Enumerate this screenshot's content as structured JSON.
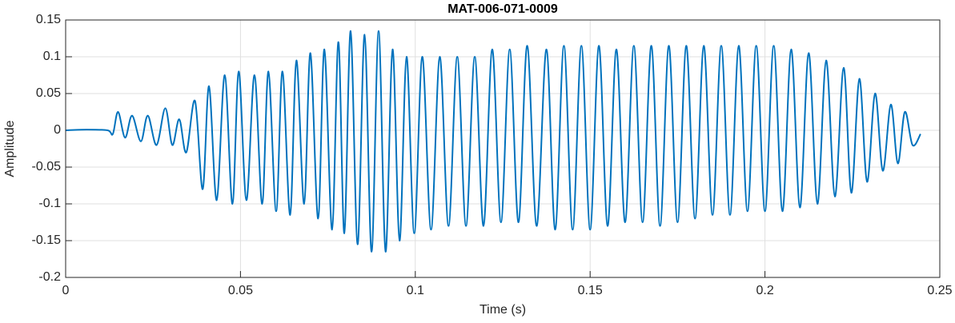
{
  "chart_data": {
    "type": "line",
    "title": "MAT-006-071-0009",
    "xlabel": "Time (s)",
    "ylabel": "Amplitude",
    "xlim": [
      0,
      0.25
    ],
    "xticks": [
      0,
      0.05,
      0.1,
      0.15,
      0.2,
      0.25
    ],
    "ylim": [
      -0.2,
      0.15
    ],
    "yticks": [
      -0.2,
      -0.15,
      -0.1,
      -0.05,
      0,
      0.05,
      0.1,
      0.15
    ],
    "grid": true,
    "x": [
      0,
      0.006,
      0.012,
      0.0135,
      0.015,
      0.017,
      0.019,
      0.0215,
      0.0235,
      0.026,
      0.0285,
      0.0305,
      0.0325,
      0.0345,
      0.037,
      0.0392,
      0.041,
      0.0432,
      0.0455,
      0.0477,
      0.0495,
      0.0517,
      0.054,
      0.0562,
      0.058,
      0.0602,
      0.062,
      0.0642,
      0.066,
      0.0682,
      0.07,
      0.0722,
      0.074,
      0.0762,
      0.078,
      0.0797,
      0.0815,
      0.0835,
      0.0855,
      0.0875,
      0.0895,
      0.0915,
      0.0935,
      0.0955,
      0.0975,
      0.0997,
      0.102,
      0.1045,
      0.107,
      0.1095,
      0.112,
      0.1145,
      0.117,
      0.1195,
      0.122,
      0.1245,
      0.127,
      0.1295,
      0.132,
      0.1347,
      0.1375,
      0.14,
      0.1425,
      0.145,
      0.1475,
      0.15,
      0.1525,
      0.155,
      0.1575,
      0.16,
      0.1625,
      0.165,
      0.1675,
      0.17,
      0.1725,
      0.175,
      0.1775,
      0.18,
      0.1825,
      0.185,
      0.1875,
      0.19,
      0.1925,
      0.195,
      0.1975,
      0.2,
      0.2025,
      0.205,
      0.2075,
      0.21,
      0.2125,
      0.215,
      0.2175,
      0.22,
      0.2225,
      0.2247,
      0.227,
      0.2292,
      0.2315,
      0.2337,
      0.236,
      0.238,
      0.24,
      0.2422,
      0.2445
    ],
    "series": [
      {
        "name": "Amplitude",
        "color": "#0072bd",
        "values": [
          0,
          0.001,
          0,
          -0.005,
          0.025,
          -0.01,
          0.02,
          -0.015,
          0.02,
          -0.02,
          0.03,
          -0.02,
          0.015,
          -0.03,
          0.04,
          -0.08,
          0.06,
          -0.095,
          0.075,
          -0.1,
          0.08,
          -0.095,
          0.075,
          -0.1,
          0.08,
          -0.11,
          0.08,
          -0.115,
          0.095,
          -0.1,
          0.105,
          -0.12,
          0.11,
          -0.135,
          0.12,
          -0.14,
          0.135,
          -0.155,
          0.13,
          -0.165,
          0.135,
          -0.165,
          0.11,
          -0.15,
          0.1,
          -0.14,
          0.1,
          -0.135,
          0.1,
          -0.13,
          0.1,
          -0.13,
          0.1,
          -0.13,
          0.11,
          -0.125,
          0.11,
          -0.125,
          0.115,
          -0.13,
          0.11,
          -0.135,
          0.115,
          -0.135,
          0.115,
          -0.135,
          0.115,
          -0.13,
          0.11,
          -0.125,
          0.115,
          -0.125,
          0.115,
          -0.13,
          0.115,
          -0.125,
          0.115,
          -0.12,
          0.115,
          -0.115,
          0.115,
          -0.115,
          0.115,
          -0.11,
          0.115,
          -0.11,
          0.115,
          -0.11,
          0.11,
          -0.105,
          0.105,
          -0.1,
          0.095,
          -0.09,
          0.085,
          -0.085,
          0.07,
          -0.07,
          0.05,
          -0.055,
          0.035,
          -0.045,
          0.025,
          -0.02,
          -0.005
        ]
      }
    ]
  }
}
